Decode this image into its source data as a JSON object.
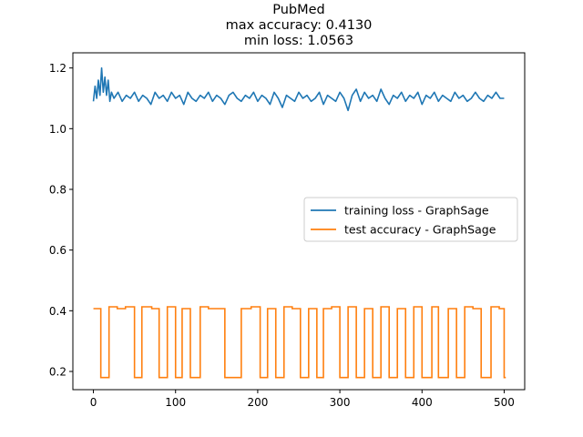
{
  "chart_data": {
    "type": "line",
    "title_lines": [
      "PubMed",
      "max accuracy: 0.4130",
      "min loss: 1.0563"
    ],
    "xlabel": "",
    "ylabel": "",
    "xlim": [
      -25,
      525
    ],
    "ylim": [
      0.14,
      1.25
    ],
    "xticks": [
      0,
      100,
      200,
      300,
      400,
      500
    ],
    "yticks": [
      0.2,
      0.4,
      0.6,
      0.8,
      1.0,
      1.2
    ],
    "grid": false,
    "legend": {
      "placement": "center-right",
      "entries": [
        "training loss - GraphSage",
        "test accuracy - GraphSage"
      ]
    },
    "series": [
      {
        "name": "training loss - GraphSage",
        "color": "#1f77b4",
        "x": [
          0,
          2,
          4,
          6,
          8,
          10,
          12,
          14,
          16,
          18,
          20,
          22,
          25,
          30,
          35,
          40,
          45,
          50,
          55,
          60,
          65,
          70,
          75,
          80,
          85,
          90,
          95,
          100,
          105,
          110,
          115,
          120,
          125,
          130,
          135,
          140,
          145,
          150,
          155,
          160,
          165,
          170,
          175,
          180,
          185,
          190,
          195,
          200,
          205,
          210,
          215,
          220,
          225,
          230,
          235,
          240,
          245,
          250,
          255,
          260,
          265,
          270,
          275,
          280,
          285,
          290,
          295,
          300,
          305,
          310,
          315,
          320,
          325,
          330,
          335,
          340,
          345,
          350,
          355,
          360,
          365,
          370,
          375,
          380,
          385,
          390,
          395,
          400,
          405,
          410,
          415,
          420,
          425,
          430,
          435,
          440,
          445,
          450,
          455,
          460,
          465,
          470,
          475,
          480,
          485,
          490,
          495,
          500
        ],
        "values": [
          1.09,
          1.14,
          1.1,
          1.16,
          1.11,
          1.2,
          1.12,
          1.17,
          1.11,
          1.16,
          1.09,
          1.12,
          1.1,
          1.12,
          1.09,
          1.11,
          1.1,
          1.12,
          1.09,
          1.11,
          1.1,
          1.08,
          1.12,
          1.1,
          1.11,
          1.09,
          1.12,
          1.1,
          1.11,
          1.08,
          1.12,
          1.1,
          1.09,
          1.11,
          1.1,
          1.12,
          1.09,
          1.11,
          1.1,
          1.08,
          1.11,
          1.12,
          1.1,
          1.09,
          1.11,
          1.1,
          1.12,
          1.09,
          1.11,
          1.1,
          1.08,
          1.12,
          1.1,
          1.07,
          1.11,
          1.1,
          1.09,
          1.12,
          1.1,
          1.11,
          1.09,
          1.1,
          1.12,
          1.08,
          1.11,
          1.1,
          1.09,
          1.12,
          1.1,
          1.06,
          1.11,
          1.13,
          1.09,
          1.12,
          1.1,
          1.11,
          1.09,
          1.13,
          1.1,
          1.08,
          1.11,
          1.1,
          1.12,
          1.09,
          1.11,
          1.1,
          1.12,
          1.08,
          1.11,
          1.1,
          1.12,
          1.09,
          1.11,
          1.1,
          1.09,
          1.12,
          1.1,
          1.11,
          1.09,
          1.1,
          1.12,
          1.1,
          1.09,
          1.11,
          1.1,
          1.12,
          1.1,
          1.1
        ]
      },
      {
        "name": "test accuracy - GraphSage",
        "color": "#ff7f0e",
        "steps": [
          [
            0,
            0.407
          ],
          [
            9,
            0.18
          ],
          [
            19,
            0.413
          ],
          [
            29,
            0.407
          ],
          [
            39,
            0.413
          ],
          [
            50,
            0.18
          ],
          [
            59,
            0.413
          ],
          [
            71,
            0.407
          ],
          [
            80,
            0.18
          ],
          [
            90,
            0.413
          ],
          [
            100,
            0.18
          ],
          [
            108,
            0.407
          ],
          [
            118,
            0.18
          ],
          [
            130,
            0.413
          ],
          [
            140,
            0.407
          ],
          [
            160,
            0.18
          ],
          [
            180,
            0.407
          ],
          [
            192,
            0.413
          ],
          [
            203,
            0.18
          ],
          [
            212,
            0.407
          ],
          [
            222,
            0.18
          ],
          [
            232,
            0.413
          ],
          [
            242,
            0.407
          ],
          [
            252,
            0.18
          ],
          [
            262,
            0.407
          ],
          [
            272,
            0.18
          ],
          [
            280,
            0.407
          ],
          [
            290,
            0.413
          ],
          [
            300,
            0.18
          ],
          [
            310,
            0.413
          ],
          [
            320,
            0.18
          ],
          [
            330,
            0.407
          ],
          [
            340,
            0.18
          ],
          [
            350,
            0.413
          ],
          [
            360,
            0.18
          ],
          [
            370,
            0.407
          ],
          [
            380,
            0.18
          ],
          [
            390,
            0.413
          ],
          [
            400,
            0.18
          ],
          [
            412,
            0.413
          ],
          [
            420,
            0.18
          ],
          [
            432,
            0.407
          ],
          [
            442,
            0.18
          ],
          [
            452,
            0.413
          ],
          [
            462,
            0.407
          ],
          [
            472,
            0.18
          ],
          [
            484,
            0.413
          ],
          [
            494,
            0.407
          ],
          [
            500,
            0.18
          ]
        ],
        "x_end": 502
      }
    ]
  }
}
